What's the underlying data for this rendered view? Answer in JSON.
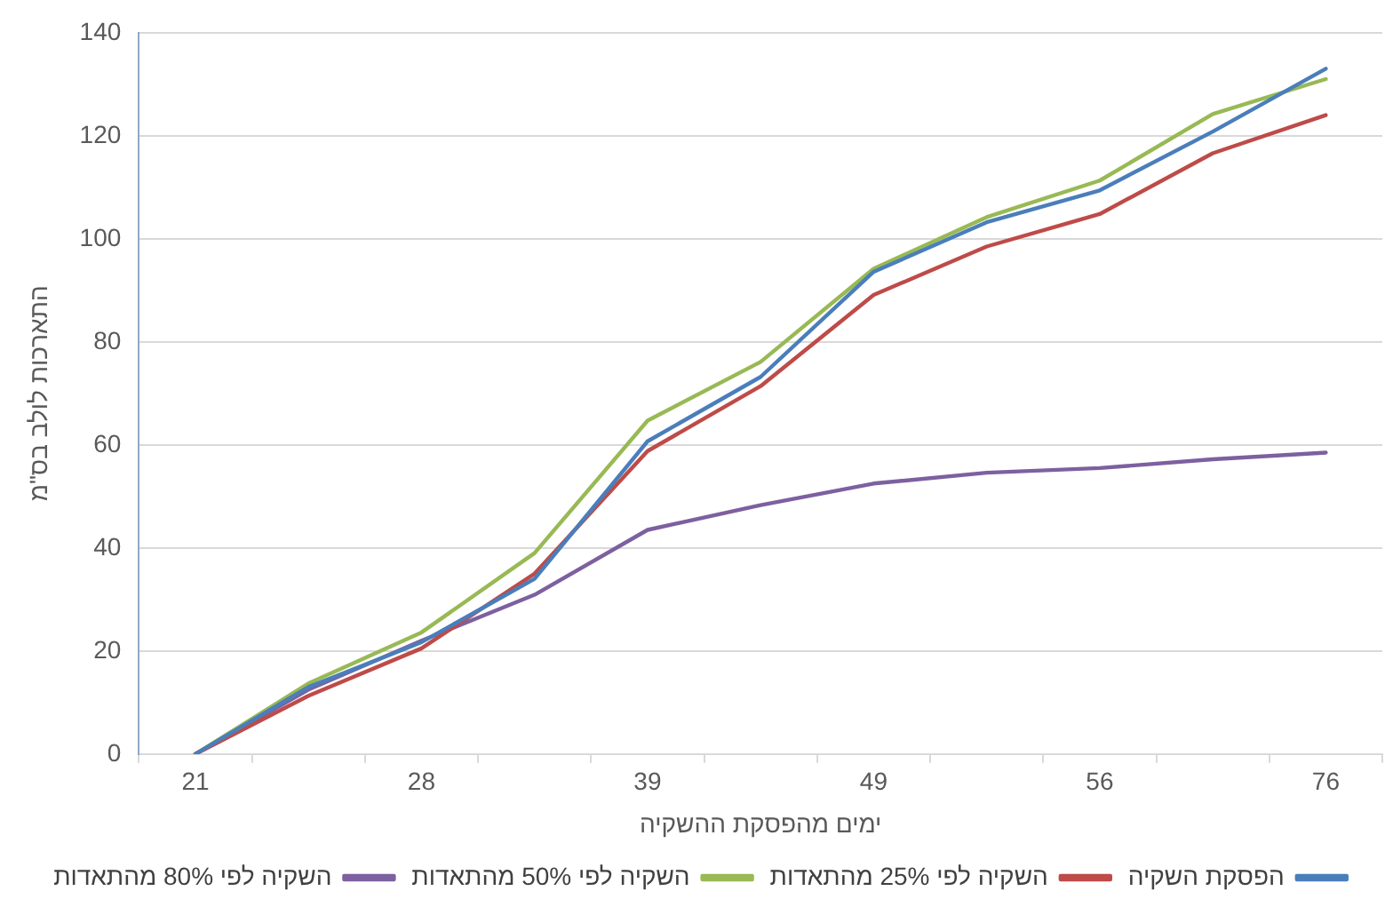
{
  "chart_data": {
    "type": "line",
    "xlabel": "ימים מהפסקת ההשקיה",
    "ylabel": "התארכות לולב בס\"מ",
    "categories": [
      "21",
      null,
      "28",
      null,
      "39",
      null,
      "49",
      null,
      "56",
      null,
      "76"
    ],
    "series": [
      {
        "name": "הפסקת השקיה",
        "color": "#4a7ebb",
        "values": [
          0,
          13,
          21.7,
          34,
          60.7,
          73.2,
          93.6,
          103.2,
          109.4,
          120.8,
          133
        ]
      },
      {
        "name": "השקיה לפי 25% מהתאדות",
        "color": "#be4b48",
        "values": [
          0,
          11.3,
          20.5,
          35,
          58.8,
          71.4,
          89.1,
          98.5,
          104.8,
          116.6,
          124
        ]
      },
      {
        "name": "השקיה לפי 50% מהתאדות",
        "color": "#98b954",
        "values": [
          0,
          13.7,
          23.6,
          39,
          64.7,
          76.1,
          94.2,
          104.2,
          111.3,
          124.2,
          131
        ]
      },
      {
        "name": "השקיה לפי 80% מהתאדות",
        "color": "#7d60a0",
        "values": [
          0,
          12.5,
          22,
          30.9,
          43.5,
          48.3,
          52.5,
          54.6,
          55.5,
          57.2,
          58.5
        ]
      }
    ],
    "ylim": [
      0,
      140
    ],
    "yticks": [
      0,
      20,
      40,
      60,
      80,
      100,
      120,
      140
    ],
    "grid": "y",
    "legend": "bottom",
    "marker": "none",
    "line_style": "solid"
  }
}
